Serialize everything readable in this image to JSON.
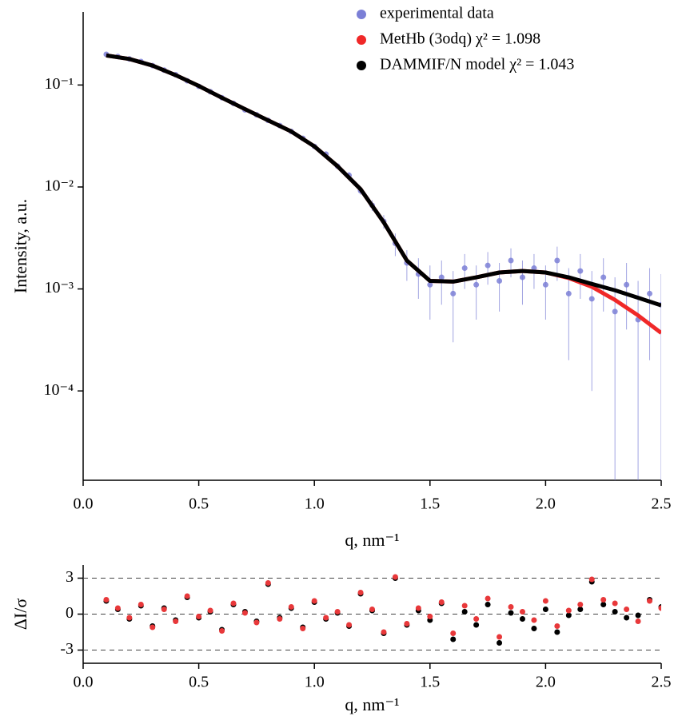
{
  "chart_data": [
    {
      "type": "scatter",
      "log_y": true,
      "xlabel": "q, nm⁻¹",
      "ylabel": "Intensity, a.u.",
      "xlim": [
        0,
        2.5
      ],
      "ylim": [
        1.33e-05,
        0.52
      ],
      "xticks": [
        {
          "value": 0,
          "label": "0.0"
        },
        0.5,
        {
          "value": 1,
          "label": "1.0"
        },
        1.5,
        {
          "value": 2,
          "label": "2.0"
        },
        2.5
      ],
      "yticks": [
        {
          "value": 0.1,
          "label": "10⁻¹"
        },
        {
          "value": 0.01,
          "label": "10⁻²"
        },
        {
          "value": 0.001,
          "label": "10⁻³"
        },
        {
          "value": 0.0001,
          "label": "10⁻⁴"
        }
      ],
      "legend": "upper right",
      "series": [
        {
          "name": "experimental data",
          "color": "#7b7fd6",
          "type": "scatter",
          "x": [
            0.1,
            0.15,
            0.2,
            0.25,
            0.3,
            0.35,
            0.4,
            0.45,
            0.5,
            0.55,
            0.6,
            0.65,
            0.7,
            0.75,
            0.8,
            0.85,
            0.9,
            0.95,
            1.0,
            1.05,
            1.1,
            1.15,
            1.2,
            1.25,
            1.3,
            1.35,
            1.4,
            1.45,
            1.5,
            1.55,
            1.6,
            1.65,
            1.7,
            1.75,
            1.8,
            1.85,
            1.9,
            1.95,
            2.0,
            2.05,
            2.1,
            2.15,
            2.2,
            2.25,
            2.3,
            2.35,
            2.4,
            2.45,
            2.5
          ],
          "values": [
            0.2,
            0.19,
            0.18,
            0.17,
            0.155,
            0.14,
            0.126,
            0.11,
            0.097,
            0.086,
            0.075,
            0.066,
            0.057,
            0.051,
            0.045,
            0.04,
            0.035,
            0.03,
            0.025,
            0.021,
            0.016,
            0.013,
            0.0092,
            0.0066,
            0.0046,
            0.0028,
            0.0018,
            0.0014,
            0.0011,
            0.0013,
            0.0009,
            0.0016,
            0.0011,
            0.0017,
            0.0012,
            0.0019,
            0.0013,
            0.0016,
            0.0011,
            0.0019,
            0.0009,
            0.0015,
            0.0008,
            0.0013,
            0.0006,
            0.0011,
            0.0005,
            0.0009,
            0.0007
          ],
          "errors": [
            0.004,
            0.004,
            0.004,
            0.003,
            0.003,
            0.003,
            0.003,
            0.002,
            0.002,
            0.002,
            0.002,
            0.002,
            0.002,
            0.002,
            0.001,
            0.001,
            0.001,
            0.001,
            0.001,
            0.001,
            0.001,
            0.001,
            0.0008,
            0.0008,
            0.0007,
            0.0007,
            0.0006,
            0.0006,
            0.0006,
            0.0006,
            0.0006,
            0.0006,
            0.0006,
            0.0006,
            0.0006,
            0.0006,
            0.0006,
            0.0006,
            0.0006,
            0.0007,
            0.0007,
            0.0007,
            0.0007,
            0.0007,
            0.0007,
            0.0007,
            0.0007,
            0.0007,
            0.0007
          ]
        },
        {
          "name": "MetHb (3odq) χ² = 1.098",
          "color": "#f02828",
          "type": "line",
          "x": [
            0.1,
            0.2,
            0.3,
            0.4,
            0.5,
            0.6,
            0.7,
            0.8,
            0.9,
            1.0,
            1.1,
            1.2,
            1.3,
            1.4,
            1.5,
            1.6,
            1.7,
            1.8,
            1.9,
            2.0,
            2.1,
            2.2,
            2.3,
            2.4,
            2.5
          ],
          "values": [
            0.195,
            0.18,
            0.155,
            0.125,
            0.098,
            0.075,
            0.058,
            0.045,
            0.035,
            0.025,
            0.016,
            0.0095,
            0.0045,
            0.0019,
            0.0012,
            0.00118,
            0.0013,
            0.00145,
            0.0015,
            0.00145,
            0.00128,
            0.00105,
            0.00078,
            0.00055,
            0.00037
          ]
        },
        {
          "name": "DAMMIF/N model χ² = 1.043",
          "color": "#000000",
          "type": "line",
          "x": [
            0.1,
            0.2,
            0.3,
            0.4,
            0.5,
            0.6,
            0.7,
            0.8,
            0.9,
            1.0,
            1.1,
            1.2,
            1.3,
            1.4,
            1.5,
            1.6,
            1.7,
            1.8,
            1.9,
            2.0,
            2.1,
            2.2,
            2.3,
            2.4,
            2.5
          ],
          "values": [
            0.195,
            0.18,
            0.155,
            0.125,
            0.098,
            0.075,
            0.058,
            0.045,
            0.035,
            0.025,
            0.016,
            0.0095,
            0.0045,
            0.0019,
            0.0012,
            0.00118,
            0.0013,
            0.00145,
            0.0015,
            0.00145,
            0.0013,
            0.00112,
            0.00097,
            0.00082,
            0.00069
          ]
        }
      ]
    },
    {
      "type": "scatter",
      "xlabel": "q, nm⁻¹",
      "ylabel": "ΔI/σ",
      "xlim": [
        0,
        2.5
      ],
      "ylim": [
        -4.1,
        4.1
      ],
      "xticks": [
        {
          "value": 0,
          "label": "0.0"
        },
        0.5,
        {
          "value": 1,
          "label": "1.0"
        },
        1.5,
        {
          "value": 2,
          "label": "2.0"
        },
        2.5
      ],
      "yticks": [
        3,
        0,
        -3
      ],
      "grid": true,
      "series": [
        {
          "color": "#000000",
          "type": "scatter",
          "x": [
            0.1,
            0.15,
            0.2,
            0.25,
            0.3,
            0.35,
            0.4,
            0.45,
            0.5,
            0.55,
            0.6,
            0.65,
            0.7,
            0.75,
            0.8,
            0.85,
            0.9,
            0.95,
            1.0,
            1.05,
            1.1,
            1.15,
            1.2,
            1.25,
            1.3,
            1.35,
            1.4,
            1.45,
            1.5,
            1.55,
            1.6,
            1.65,
            1.7,
            1.75,
            1.8,
            1.85,
            1.9,
            1.95,
            2.0,
            2.05,
            2.1,
            2.15,
            2.2,
            2.25,
            2.3,
            2.35,
            2.4,
            2.45,
            2.5
          ],
          "values": [
            1.1,
            0.4,
            -0.4,
            0.7,
            -1.0,
            0.5,
            -0.5,
            1.4,
            -0.3,
            0.2,
            -1.3,
            0.8,
            0.2,
            -0.6,
            2.5,
            -0.3,
            0.5,
            -1.1,
            1.0,
            -0.4,
            0.1,
            -1.0,
            1.7,
            0.3,
            -1.6,
            3.0,
            -0.9,
            0.3,
            -0.5,
            0.9,
            -2.1,
            0.2,
            -0.9,
            0.8,
            -2.4,
            0.1,
            -0.4,
            -1.2,
            0.4,
            -1.5,
            -0.1,
            0.4,
            2.7,
            0.8,
            0.2,
            -0.3,
            -0.1,
            1.2,
            0.6
          ]
        },
        {
          "color": "#e8383a",
          "type": "scatter",
          "x": [
            0.1,
            0.15,
            0.2,
            0.25,
            0.3,
            0.35,
            0.4,
            0.45,
            0.5,
            0.55,
            0.6,
            0.65,
            0.7,
            0.75,
            0.8,
            0.85,
            0.9,
            0.95,
            1.0,
            1.05,
            1.1,
            1.15,
            1.2,
            1.25,
            1.3,
            1.35,
            1.4,
            1.45,
            1.5,
            1.55,
            1.6,
            1.65,
            1.7,
            1.75,
            1.8,
            1.85,
            1.9,
            1.95,
            2.0,
            2.05,
            2.1,
            2.15,
            2.2,
            2.25,
            2.3,
            2.35,
            2.4,
            2.45,
            2.5
          ],
          "values": [
            1.2,
            0.5,
            -0.3,
            0.8,
            -1.1,
            0.4,
            -0.6,
            1.5,
            -0.2,
            0.3,
            -1.4,
            0.9,
            0.1,
            -0.7,
            2.6,
            -0.4,
            0.6,
            -1.2,
            1.1,
            -0.3,
            0.2,
            -0.9,
            1.8,
            0.4,
            -1.5,
            3.1,
            -0.8,
            0.5,
            -0.2,
            1.0,
            -1.6,
            0.7,
            -0.4,
            1.3,
            -1.9,
            0.6,
            0.2,
            -0.5,
            1.1,
            -1.0,
            0.3,
            0.8,
            2.9,
            1.2,
            0.9,
            0.4,
            -0.6,
            1.1,
            0.5
          ]
        }
      ]
    }
  ]
}
